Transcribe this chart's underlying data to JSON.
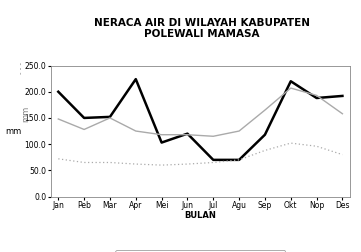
{
  "title": "NERACA AIR DI WILAYAH KABUPATEN\nPOLEWALI MAMASA",
  "xlabel": "BULAN",
  "ylabel": "mm",
  "months": [
    "Jan",
    "Peb",
    "Mar",
    "Apr",
    "Mei",
    "Jun",
    "Jul",
    "Agu",
    "Sep",
    "Okt",
    "Nop",
    "Des"
  ],
  "curah_hujan": [
    200,
    150,
    152,
    224,
    103,
    120,
    70,
    70,
    118,
    220,
    188,
    192
  ],
  "EI0": [
    148,
    128,
    150,
    125,
    118,
    118,
    115,
    125,
    165,
    207,
    193,
    158
  ],
  "ET50": [
    72,
    65,
    65,
    62,
    60,
    62,
    65,
    70,
    88,
    102,
    96,
    80
  ],
  "ylim": [
    0,
    250
  ],
  "yticks": [
    0.0,
    50.0,
    100.0,
    150.0,
    200.0,
    250.0
  ],
  "background_color": "#ffffff",
  "plot_bg": "#ffffff",
  "curah_color": "#000000",
  "ei0_color": "#aaaaaa",
  "et50_color": "#aaaaaa",
  "title_fontsize": 7.5,
  "label_fontsize": 6,
  "tick_fontsize": 5.5,
  "legend_fontsize": 5.5
}
